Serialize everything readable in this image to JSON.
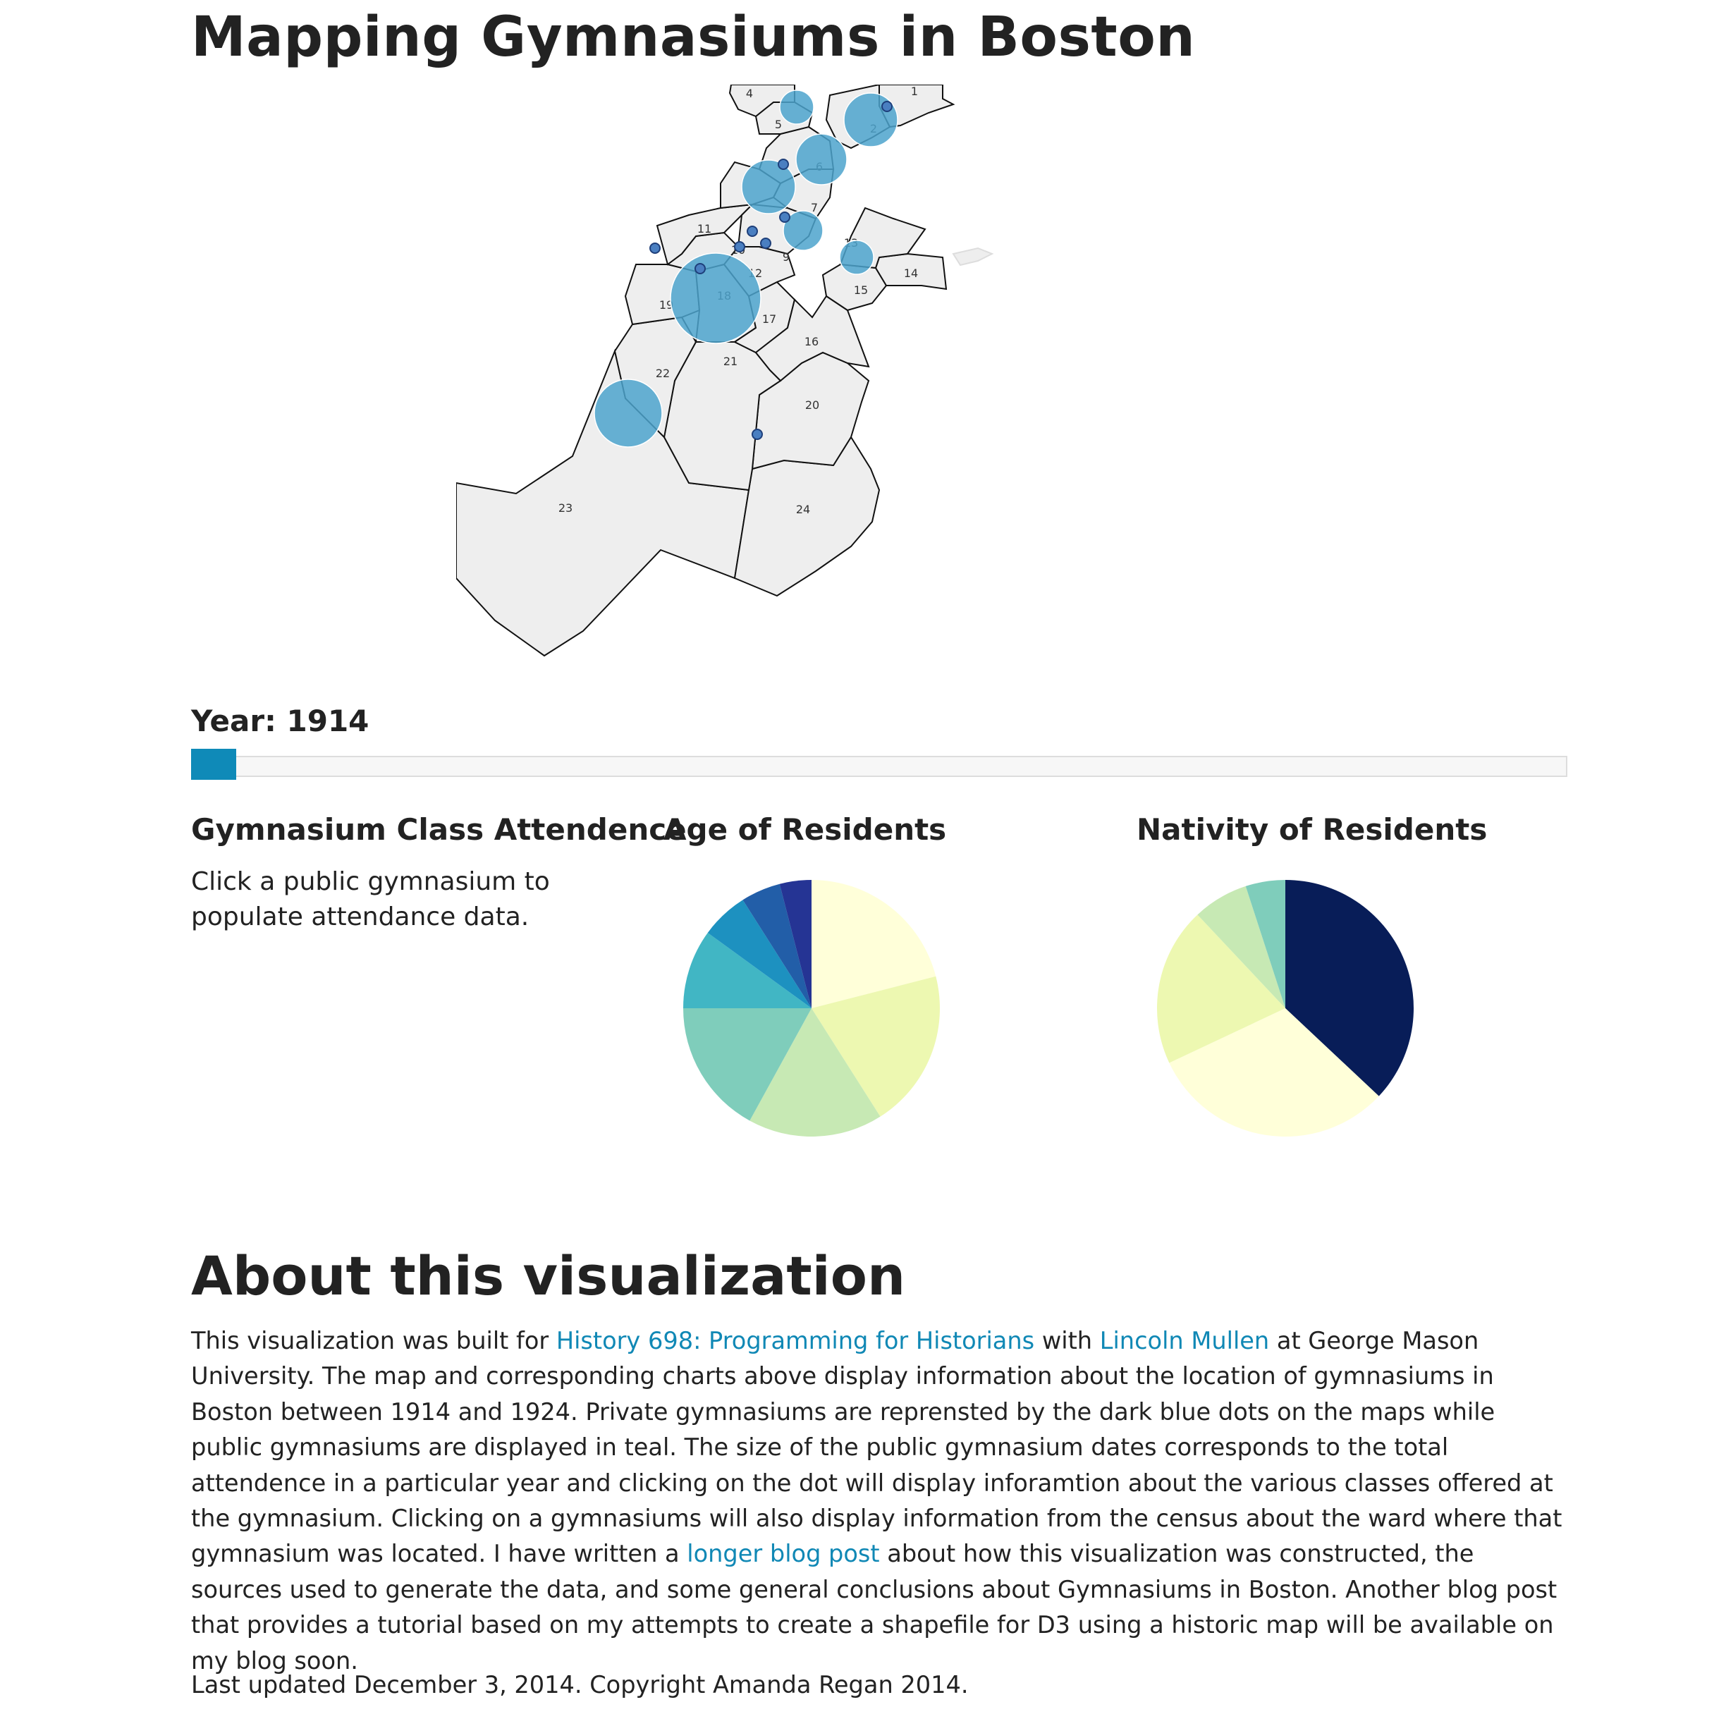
{
  "page": {
    "title": "Mapping Gymnasiums in Boston"
  },
  "map": {
    "ward_labels": [
      "1",
      "2",
      "4",
      "5",
      "6",
      "7",
      "9",
      "10",
      "11",
      "12",
      "13",
      "14",
      "15",
      "16",
      "17",
      "18",
      "19",
      "20",
      "21",
      "22",
      "23",
      "24"
    ],
    "colors": {
      "public_gym": "#4ca3cc",
      "private_gym": "#4a7fc1",
      "ward_fill": "#eeeeee",
      "ward_stroke": "#111111"
    }
  },
  "year": {
    "label": "Year: 1914",
    "value": 1914,
    "range": [
      1914,
      1924
    ],
    "accent": "#0f8ab8"
  },
  "attendance": {
    "heading": "Gymnasium Class Attendence",
    "text": "Click a public gymnasium to populate attendance data."
  },
  "chart_data": [
    {
      "type": "pie",
      "title": "Age of Residents",
      "slices": [
        {
          "value": 21,
          "color": "#ffffd9"
        },
        {
          "value": 20,
          "color": "#edf8b1"
        },
        {
          "value": 17,
          "color": "#c7e9b4"
        },
        {
          "value": 17,
          "color": "#7fcdbb"
        },
        {
          "value": 10,
          "color": "#41b6c4"
        },
        {
          "value": 6,
          "color": "#1d91c0"
        },
        {
          "value": 5,
          "color": "#225ea8"
        },
        {
          "value": 4,
          "color": "#253494"
        }
      ]
    },
    {
      "type": "pie",
      "title": "Nativity of Residents",
      "slices": [
        {
          "value": 37,
          "color": "#081d58"
        },
        {
          "value": 31,
          "color": "#ffffd9"
        },
        {
          "value": 20,
          "color": "#edf8b1"
        },
        {
          "value": 7,
          "color": "#c7e9b4"
        },
        {
          "value": 5,
          "color": "#7fcdbb"
        }
      ]
    }
  ],
  "about": {
    "heading": "About this visualization",
    "p1": "This visualization was built for ",
    "link1": "History 698: Programming for Historians",
    "p2": " with ",
    "link2": "Lincoln Mullen",
    "p3": " at George Mason University. The map and corresponding charts above display information about the location of gymnasiums in Boston between 1914 and 1924. Private gymnasiums are reprensted by the dark blue dots on the maps while public gymnasiums are displayed in teal. The size of the public gymnasium dates corresponds to the total attendence in a particular year and clicking on the dot will display inforamtion about the various classes offered at the gymnasium. Clicking on a gymnasiums will also display information from the census about the ward where that gymnasium was located. I have written a ",
    "link3": "longer blog post",
    "p4": " about how this visualization was constructed, the sources used to generate the data, and some general conclusions about Gymnasiums in Boston. Another blog post that provides a tutorial based on my attempts to create a shapefile for D3 using a historic map will be available on my blog soon."
  },
  "footer": {
    "text": "Last updated December 3, 2014. Copyright Amanda Regan 2014."
  }
}
